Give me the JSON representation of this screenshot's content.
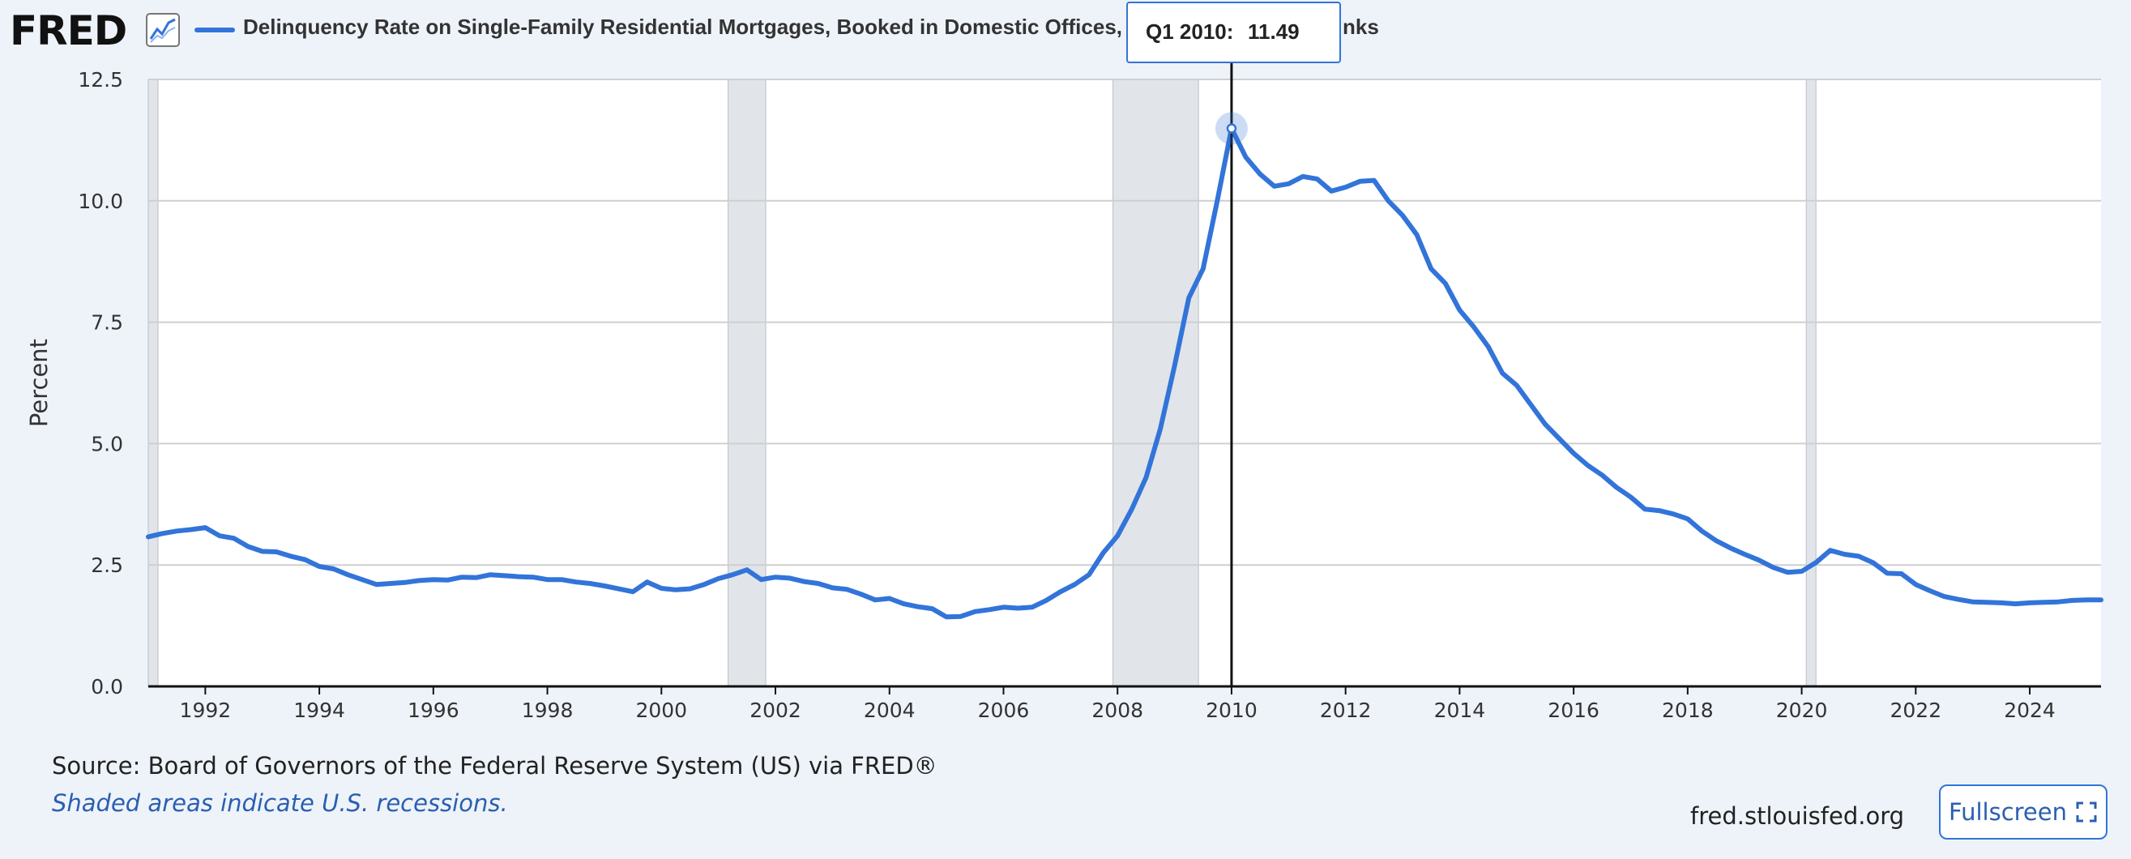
{
  "logo": {
    "text": "FRED"
  },
  "legend": {
    "series_label": "Delinquency Rate on Single-Family Residential Mortgages, Booked in Domestic Offices,",
    "label_tail": "nks",
    "line_color": "#3274d9"
  },
  "tooltip": {
    "date": "Q1 2010:",
    "value": "11.49"
  },
  "footer": {
    "source": "Source: Board of Governors of the Federal Reserve System (US) via FRED®",
    "note": "Shaded areas indicate U.S. recessions.",
    "site": "fred.stlouisfed.org",
    "fullscreen_label": "Fullscreen"
  },
  "colors": {
    "series": "#3274d9",
    "recession": "#e1e5ea",
    "grid": "#cfcfcf",
    "background": "#eef3fa"
  },
  "chart_data": {
    "type": "line",
    "title": "Delinquency Rate on Single-Family Residential Mortgages, Booked in Domestic Offices,",
    "xlabel": "",
    "ylabel": "Percent",
    "xlim": [
      1991.0,
      2025.25
    ],
    "ylim": [
      0,
      12.5
    ],
    "yticks": [
      "0.0",
      "2.5",
      "5.0",
      "7.5",
      "10.0",
      "12.5"
    ],
    "xticks": [
      "1992",
      "1994",
      "1996",
      "1998",
      "2000",
      "2002",
      "2004",
      "2006",
      "2008",
      "2010",
      "2012",
      "2014",
      "2016",
      "2018",
      "2020",
      "2022",
      "2024"
    ],
    "grid": true,
    "recessions": [
      [
        1991.0,
        1991.17
      ],
      [
        2001.17,
        2001.83
      ],
      [
        2007.92,
        2009.42
      ],
      [
        2020.08,
        2020.25
      ]
    ],
    "highlight": {
      "x": 2010.0,
      "y": 11.49,
      "label": "Q1 2010: 11.49"
    },
    "series": [
      {
        "name": "Delinquency Rate on Single-Family Residential Mortgages, Booked in Domestic Offices,",
        "x": [
          1991.0,
          1991.25,
          1991.5,
          1991.75,
          1992.0,
          1992.25,
          1992.5,
          1992.75,
          1993.0,
          1993.25,
          1993.5,
          1993.75,
          1994.0,
          1994.25,
          1994.5,
          1994.75,
          1995.0,
          1995.25,
          1995.5,
          1995.75,
          1996.0,
          1996.25,
          1996.5,
          1996.75,
          1997.0,
          1997.25,
          1997.5,
          1997.75,
          1998.0,
          1998.25,
          1998.5,
          1998.75,
          1999.0,
          1999.25,
          1999.5,
          1999.75,
          2000.0,
          2000.25,
          2000.5,
          2000.75,
          2001.0,
          2001.25,
          2001.5,
          2001.75,
          2002.0,
          2002.25,
          2002.5,
          2002.75,
          2003.0,
          2003.25,
          2003.5,
          2003.75,
          2004.0,
          2004.25,
          2004.5,
          2004.75,
          2005.0,
          2005.25,
          2005.5,
          2005.75,
          2006.0,
          2006.25,
          2006.5,
          2006.75,
          2007.0,
          2007.25,
          2007.5,
          2007.75,
          2008.0,
          2008.25,
          2008.5,
          2008.75,
          2009.0,
          2009.25,
          2009.5,
          2009.75,
          2010.0,
          2010.25,
          2010.5,
          2010.75,
          2011.0,
          2011.25,
          2011.5,
          2011.75,
          2012.0,
          2012.25,
          2012.5,
          2012.75,
          2013.0,
          2013.25,
          2013.5,
          2013.75,
          2014.0,
          2014.25,
          2014.5,
          2014.75,
          2015.0,
          2015.25,
          2015.5,
          2015.75,
          2016.0,
          2016.25,
          2016.5,
          2016.75,
          2017.0,
          2017.25,
          2017.5,
          2017.75,
          2018.0,
          2018.25,
          2018.5,
          2018.75,
          2019.0,
          2019.25,
          2019.5,
          2019.75,
          2020.0,
          2020.25,
          2020.5,
          2020.75,
          2021.0,
          2021.25,
          2021.5,
          2021.75,
          2022.0,
          2022.25,
          2022.5,
          2022.75,
          2023.0,
          2023.25,
          2023.5,
          2023.75,
          2024.0,
          2024.25,
          2024.5,
          2024.75,
          2025.0,
          2025.25
        ],
        "y": [
          3.08,
          3.15,
          3.2,
          3.23,
          3.27,
          3.1,
          3.05,
          2.88,
          2.78,
          2.77,
          2.68,
          2.61,
          2.47,
          2.42,
          2.3,
          2.2,
          2.1,
          2.12,
          2.14,
          2.18,
          2.2,
          2.19,
          2.25,
          2.24,
          2.3,
          2.28,
          2.26,
          2.25,
          2.2,
          2.2,
          2.15,
          2.12,
          2.07,
          2.01,
          1.95,
          2.15,
          2.02,
          1.99,
          2.01,
          2.1,
          2.22,
          2.3,
          2.4,
          2.2,
          2.25,
          2.23,
          2.16,
          2.12,
          2.03,
          2.0,
          1.9,
          1.78,
          1.81,
          1.7,
          1.64,
          1.6,
          1.43,
          1.44,
          1.54,
          1.58,
          1.63,
          1.61,
          1.63,
          1.77,
          1.95,
          2.1,
          2.3,
          2.75,
          3.1,
          3.65,
          4.3,
          5.3,
          6.6,
          8.0,
          8.6,
          10.0,
          11.49,
          10.9,
          10.55,
          10.3,
          10.35,
          10.5,
          10.45,
          10.2,
          10.28,
          10.4,
          10.42,
          10.0,
          9.7,
          9.3,
          8.6,
          8.3,
          7.75,
          7.4,
          7.0,
          6.45,
          6.2,
          5.8,
          5.4,
          5.1,
          4.8,
          4.55,
          4.35,
          4.1,
          3.9,
          3.65,
          3.62,
          3.55,
          3.45,
          3.2,
          3.0,
          2.85,
          2.72,
          2.6,
          2.45,
          2.35,
          2.37,
          2.55,
          2.8,
          2.72,
          2.68,
          2.55,
          2.33,
          2.32,
          2.1,
          1.97,
          1.85,
          1.79,
          1.74,
          1.73,
          1.72,
          1.7,
          1.72,
          1.73,
          1.74,
          1.77,
          1.78,
          1.78
        ]
      }
    ]
  }
}
